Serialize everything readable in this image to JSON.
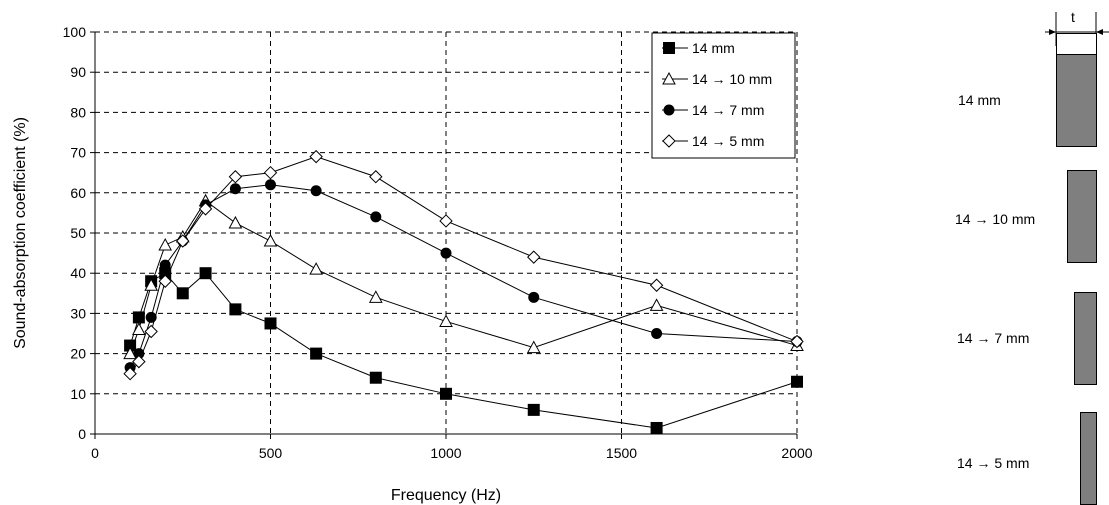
{
  "chart_data": {
    "type": "line",
    "title": "",
    "xlabel": "Frequency (Hz)",
    "ylabel": "Sound-absorption coefficient (%)",
    "xlim": [
      0,
      2000
    ],
    "ylim": [
      0,
      100
    ],
    "xticks": [
      0,
      500,
      1000,
      1500,
      2000
    ],
    "yticks": [
      0,
      10,
      20,
      30,
      40,
      50,
      60,
      70,
      80,
      90,
      100
    ],
    "grid": "dashed",
    "legend_position": "top-right",
    "series": [
      {
        "name": "14 mm",
        "marker": "filled-square",
        "x": [
          100,
          125,
          160,
          200,
          250,
          315,
          400,
          500,
          630,
          800,
          1000,
          1250,
          1600,
          2000
        ],
        "y": [
          22,
          29,
          38,
          40,
          35,
          40,
          31,
          27.5,
          20,
          14,
          10,
          6,
          1.5,
          13
        ]
      },
      {
        "name": "14 → 10 mm",
        "marker": "open-triangle",
        "x": [
          100,
          125,
          160,
          200,
          250,
          315,
          400,
          500,
          630,
          800,
          1000,
          1250,
          1600,
          2000
        ],
        "y": [
          20,
          26,
          37,
          47,
          49,
          58,
          52.5,
          48,
          41,
          34,
          28,
          21.5,
          32,
          22
        ]
      },
      {
        "name": "14 → 7 mm",
        "marker": "filled-circle",
        "x": [
          100,
          125,
          160,
          200,
          250,
          315,
          400,
          500,
          630,
          800,
          1000,
          1250,
          1600,
          2000
        ],
        "y": [
          16.5,
          20,
          29,
          42,
          48,
          57,
          61,
          62,
          60.5,
          54,
          45,
          34,
          25,
          23
        ]
      },
      {
        "name": "14 → 5 mm",
        "marker": "open-diamond",
        "x": [
          100,
          125,
          160,
          200,
          250,
          315,
          400,
          500,
          630,
          800,
          1000,
          1250,
          1600,
          2000
        ],
        "y": [
          15,
          18,
          25.5,
          38,
          48,
          56,
          64,
          65,
          69,
          64,
          53,
          44,
          37,
          23
        ]
      }
    ]
  },
  "specimens": {
    "thickness_symbol": "t",
    "items": [
      {
        "label": "14 mm"
      },
      {
        "label": "14 → 10 mm"
      },
      {
        "label": "14 → 7 mm"
      },
      {
        "label": "14 → 5 mm"
      }
    ]
  }
}
